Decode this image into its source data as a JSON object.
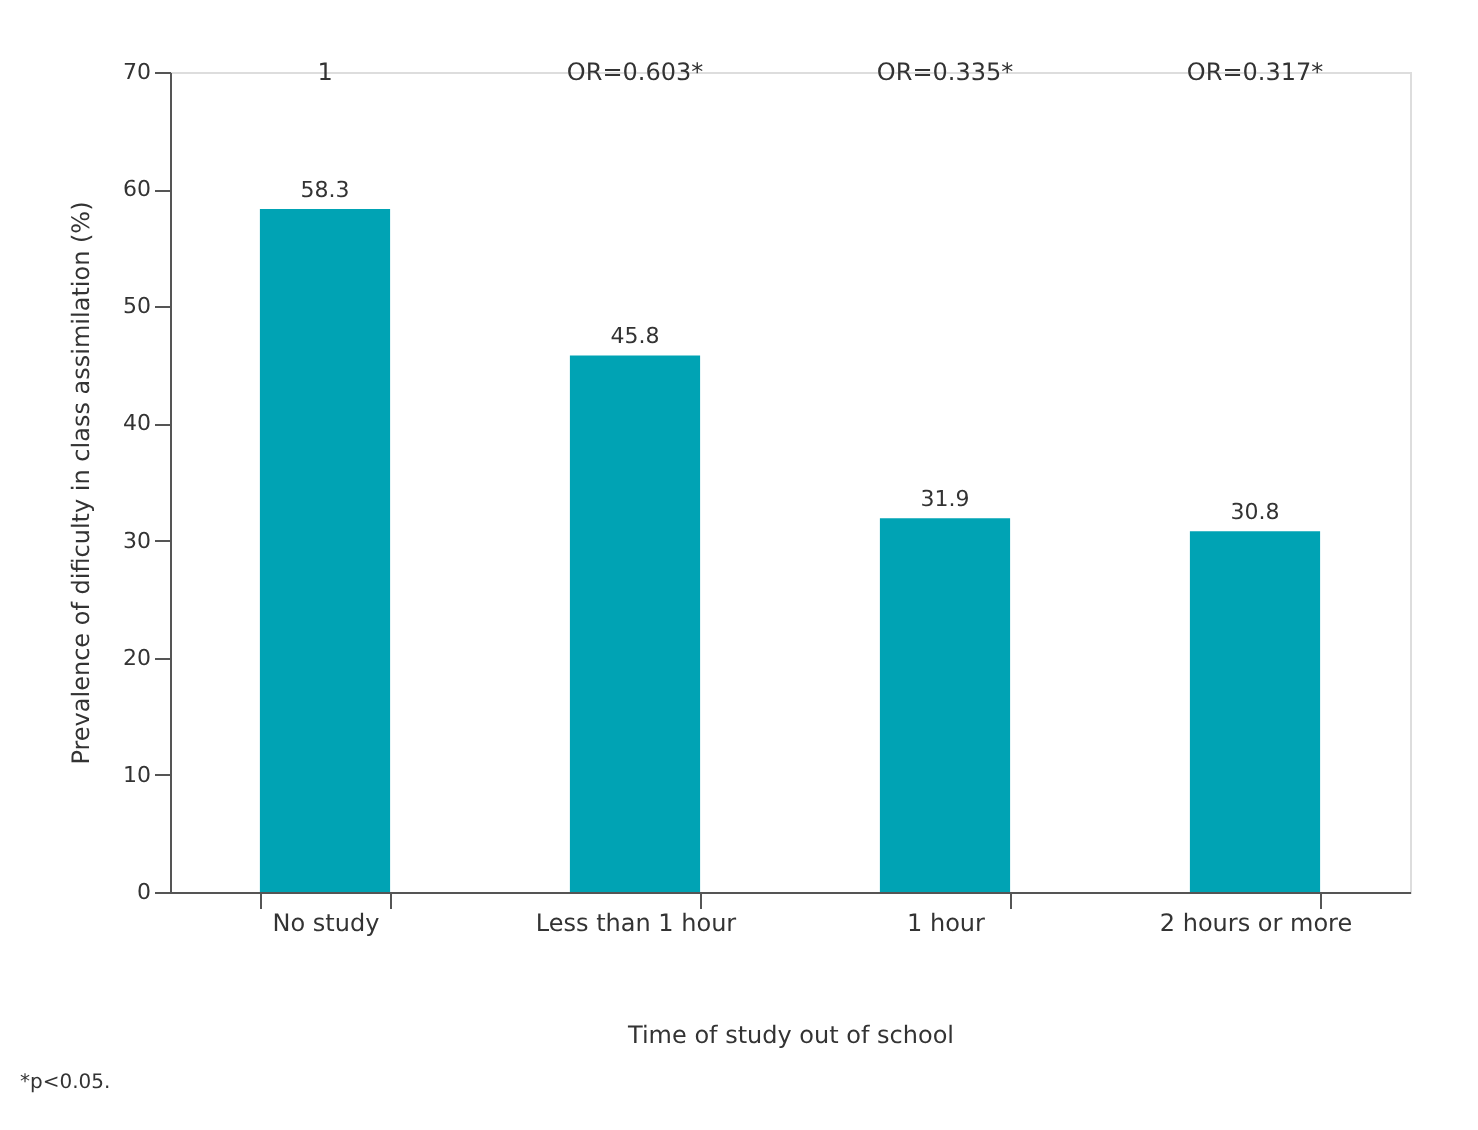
{
  "chart_data": {
    "type": "bar",
    "xlabel": "Time of study out of school",
    "ylabel": "Prevalence of dificulty in class assimilation (%)",
    "categories": [
      "No study",
      "Less than 1 hour",
      "1 hour",
      "2 hours or more"
    ],
    "values": [
      58.3,
      45.8,
      31.9,
      30.8
    ],
    "color": "#00a3b4",
    "ylim": [
      0,
      70
    ],
    "yticks": [
      0,
      10,
      20,
      30,
      40,
      50,
      60,
      70
    ],
    "grid": false,
    "data_labels": true,
    "annotations": [
      "1",
      "OR=0.603*",
      "OR=0.335*",
      "OR=0.317*",
      "*p<0.05."
    ]
  }
}
